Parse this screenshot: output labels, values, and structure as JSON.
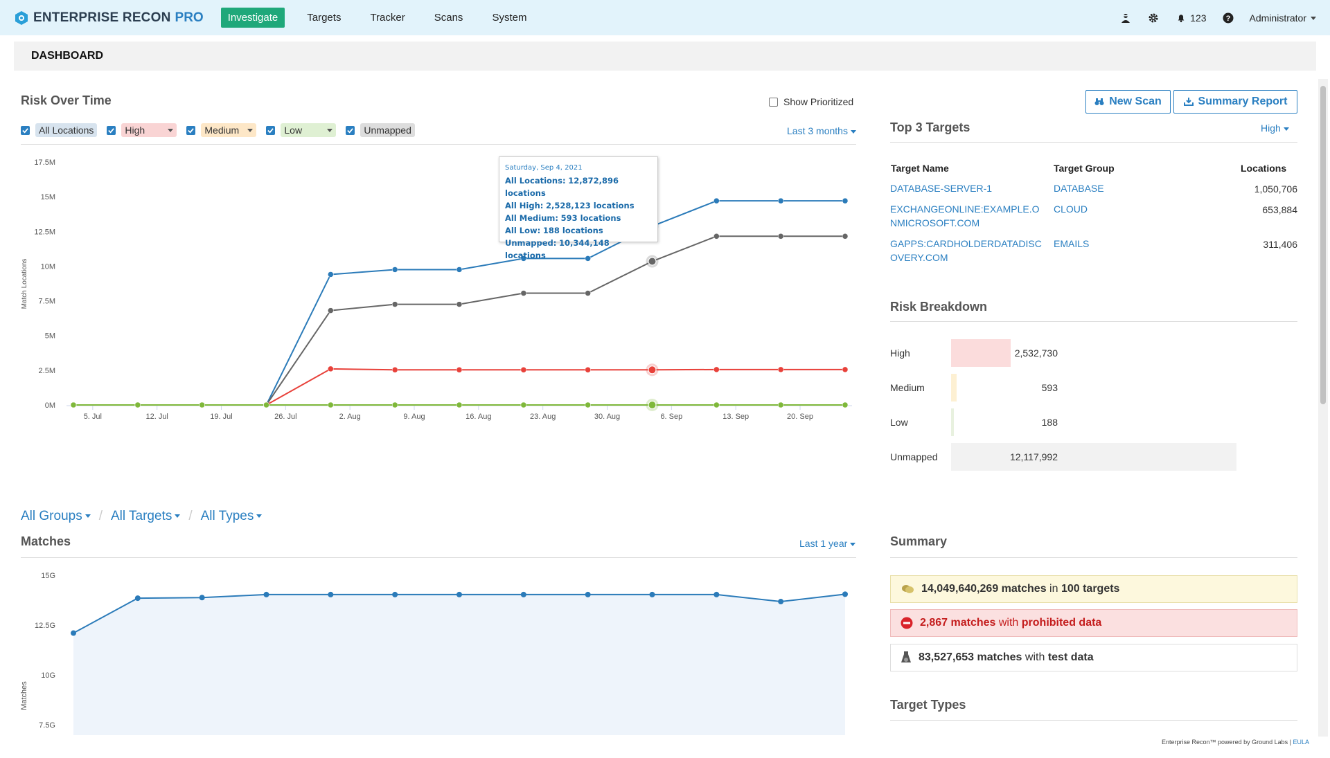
{
  "app": {
    "name": "ENTERPRISE RECON",
    "edition": "PRO"
  },
  "nav": {
    "items": [
      "Investigate",
      "Targets",
      "Tracker",
      "Scans",
      "System"
    ],
    "active": "Investigate"
  },
  "topbar": {
    "notifications": "123",
    "user": "Administrator"
  },
  "page": {
    "title": "DASHBOARD"
  },
  "risk_over_time": {
    "title": "Risk Over Time",
    "show_prioritized": "Show Prioritized",
    "range": "Last 3 months",
    "filters": [
      "All Locations",
      "High",
      "Medium",
      "Low",
      "Unmapped"
    ],
    "y_axis_label": "Match Locations",
    "tooltip": {
      "date": "Saturday, Sep 4, 2021",
      "lines": [
        {
          "k": "All Locations:",
          "v": "12,872,896 locations"
        },
        {
          "k": "All High:",
          "v": "2,528,123 locations"
        },
        {
          "k": "All Medium:",
          "v": "593 locations"
        },
        {
          "k": "All Low:",
          "v": "188 locations"
        },
        {
          "k": "Unmapped:",
          "v": "10,344,148 locations"
        }
      ]
    }
  },
  "chart_data": [
    {
      "type": "line",
      "title": "Risk Over Time",
      "ylabel": "Match Locations",
      "x": [
        "2021-06-30",
        "2021-07-07",
        "2021-07-14",
        "2021-07-21",
        "2021-07-28",
        "2021-08-04",
        "2021-08-11",
        "2021-08-18",
        "2021-08-25",
        "2021-09-04",
        "2021-09-11",
        "2021-09-18",
        "2021-09-25"
      ],
      "x_ticks": [
        "5. Jul",
        "12. Jul",
        "19. Jul",
        "26. Jul",
        "2. Aug",
        "9. Aug",
        "16. Aug",
        "23. Aug",
        "30. Aug",
        "6. Sep",
        "13. Sep",
        "20. Sep"
      ],
      "y_ticks": [
        "0M",
        "2.5M",
        "5M",
        "7.5M",
        "10M",
        "12.5M",
        "15M",
        "17.5M"
      ],
      "ylim": [
        0,
        17500000
      ],
      "series": [
        {
          "name": "All Locations",
          "color": "#2b7bb9",
          "values": [
            0,
            0,
            0,
            0,
            9400000,
            9750000,
            9750000,
            10550000,
            10550000,
            12872896,
            14700000,
            14700000,
            14700000
          ]
        },
        {
          "name": "Unmapped",
          "color": "#666666",
          "values": [
            0,
            0,
            0,
            0,
            6800000,
            7250000,
            7250000,
            8050000,
            8050000,
            10344148,
            12150000,
            12150000,
            12150000
          ]
        },
        {
          "name": "High",
          "color": "#e8413a",
          "values": [
            0,
            0,
            0,
            0,
            2600000,
            2530000,
            2530000,
            2530000,
            2530000,
            2528123,
            2550000,
            2550000,
            2550000
          ]
        },
        {
          "name": "Low",
          "color": "#7fb83a",
          "values": [
            0,
            0,
            0,
            0,
            0,
            0,
            0,
            0,
            0,
            188,
            0,
            0,
            0
          ]
        }
      ]
    },
    {
      "type": "area",
      "title": "Matches",
      "ylabel": "Matches",
      "y_ticks": [
        "7.5G",
        "10G",
        "12.5G",
        "15G"
      ],
      "ylim": [
        5000000000,
        15000000000
      ],
      "series": [
        {
          "name": "Matches",
          "color": "#2b7bb9",
          "values": [
            12100000000,
            13850000000,
            13880000000,
            14030000000,
            14030000000,
            14030000000,
            14030000000,
            14030000000,
            14030000000,
            14030000000,
            14030000000,
            13680000000,
            14049640269
          ]
        }
      ]
    }
  ],
  "buttons": {
    "new_scan": "New Scan",
    "summary_report": "Summary Report"
  },
  "top_targets": {
    "title": "Top 3 Targets",
    "filter": "High",
    "headers": [
      "Target Name",
      "Target Group",
      "Locations"
    ],
    "rows": [
      {
        "name_l1": "DATABASE-SERVER-1",
        "name_l2": "",
        "group": "DATABASE",
        "locations": "1,050,706"
      },
      {
        "name_l1": "EXCHANGEONLINE:EXAMPLE.O",
        "name_l2": "NMICROSOFT.COM",
        "group": "CLOUD",
        "locations": "653,884"
      },
      {
        "name_l1": "GAPPS:CARDHOLDERDATADISC",
        "name_l2": "OVERY.COM",
        "group": "EMAILS",
        "locations": "311,406"
      }
    ]
  },
  "risk_breakdown": {
    "title": "Risk Breakdown",
    "rows": [
      {
        "label": "High",
        "value": "2,532,730",
        "fraction": 0.209,
        "color": "#fbdcdc"
      },
      {
        "label": "Medium",
        "value": "593",
        "fraction": 0.02,
        "color": "#fdf0d3"
      },
      {
        "label": "Low",
        "value": "188",
        "fraction": 0.01,
        "color": "#e8f1df"
      },
      {
        "label": "Unmapped",
        "value": "12,117,992",
        "fraction": 1.0,
        "color": "#f2f2f2"
      }
    ]
  },
  "matches": {
    "breadcrumbs": [
      "All Groups",
      "All Targets",
      "All Types"
    ],
    "title": "Matches",
    "range": "Last 1 year"
  },
  "summary": {
    "title": "Summary",
    "rows": [
      {
        "count": "14,049,640,269 matches",
        "mid": "in",
        "tail": "100 targets"
      },
      {
        "count": "2,867 matches",
        "mid": "with",
        "tail": "prohibited data"
      },
      {
        "count": "83,527,653 matches",
        "mid": "with",
        "tail": "test data"
      }
    ]
  },
  "target_types": {
    "title": "Target Types"
  },
  "footer": {
    "text": "Enterprise Recon™ powered by Ground Labs |",
    "link": "EULA"
  }
}
